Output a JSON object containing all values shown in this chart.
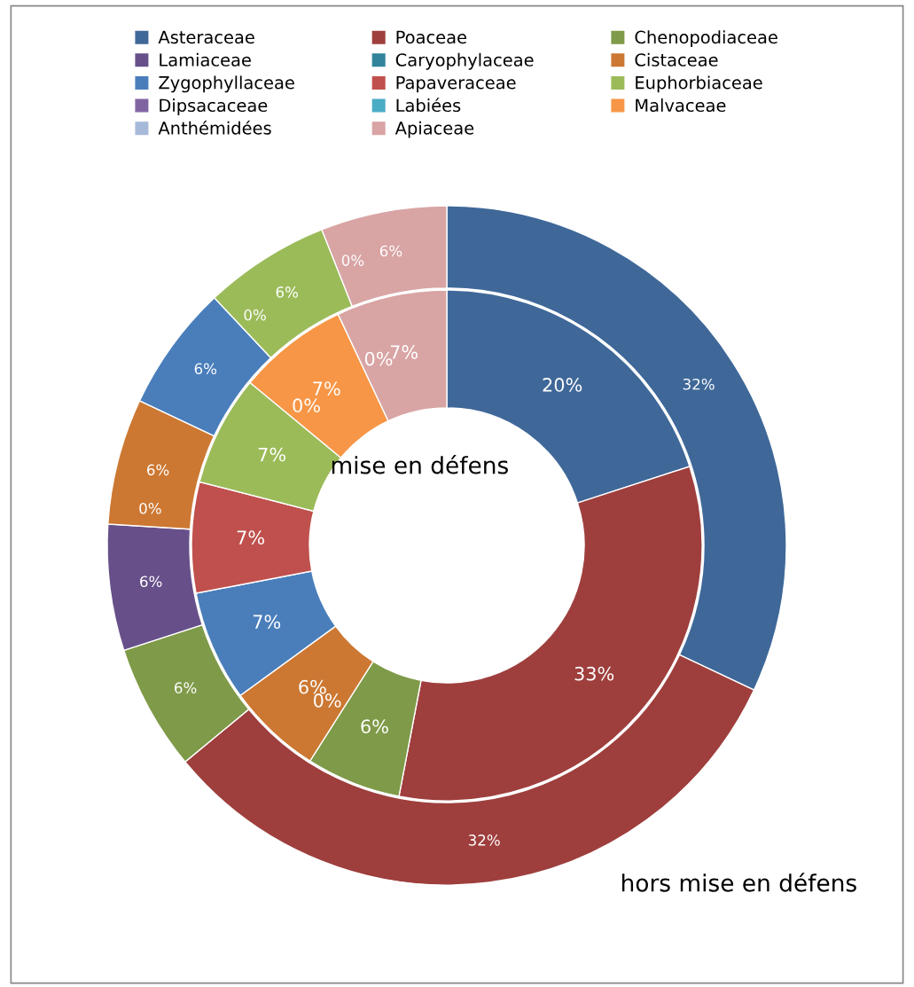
{
  "chart_data": {
    "type": "donut",
    "legend": "top",
    "categories": [
      "Asteraceae",
      "Poaceae",
      "Chenopodiaceae",
      "Lamiaceae",
      "Caryophylaceae",
      "Cistaceae",
      "Zygophyllaceae",
      "Papaveraceae",
      "Euphorbiaceae",
      "Dipsacaceae",
      "Labiées",
      "Malvaceae",
      "Anthémidées",
      "Apiaceae"
    ],
    "colors": [
      "#3f6899",
      "#9e3f3d",
      "#7f9a48",
      "#67508a",
      "#31849b",
      "#cc7832",
      "#4a7ebb",
      "#c0504d",
      "#9bbb59",
      "#8064a2",
      "#4bacc6",
      "#f79646",
      "#a7b9d9",
      "#d9a4a4"
    ],
    "series": [
      {
        "name": "mise en défens",
        "values": [
          20,
          33,
          6,
          0,
          0,
          6,
          7,
          7,
          7,
          0,
          0,
          7,
          0,
          7
        ],
        "value_labels": [
          "20%",
          "33%",
          "6%",
          "0%",
          null,
          "6%",
          "7%",
          "7%",
          "7%",
          "0%",
          null,
          "7%",
          "0%",
          "7%"
        ]
      },
      {
        "name": "hors mise en défens",
        "values": [
          32,
          32,
          6,
          6,
          0,
          6,
          6,
          0,
          6,
          0,
          0,
          0,
          0,
          6
        ],
        "value_labels": [
          "32%",
          "32%",
          "6%",
          "6%",
          "0%",
          "6%",
          "6%",
          "0%",
          "6%",
          "0%",
          null,
          null,
          null,
          "6%"
        ]
      }
    ]
  }
}
